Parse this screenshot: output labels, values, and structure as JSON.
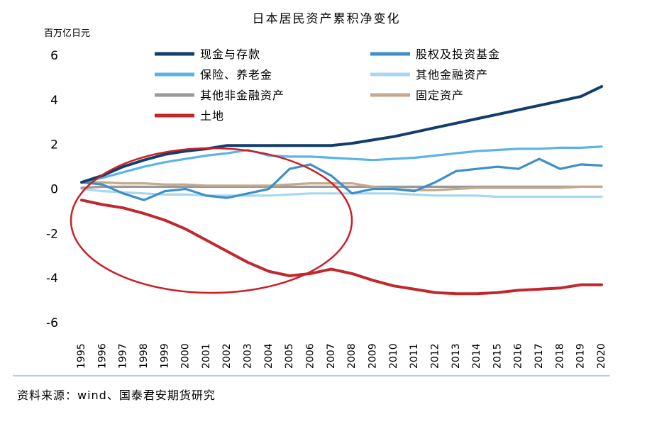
{
  "chart_data": {
    "type": "line",
    "title": "日本居民资产累积净变化",
    "unit_label": "百万亿日元",
    "source_note": "资料来源：wind、国泰君安期货研究",
    "ylim": [
      -6,
      6
    ],
    "yticks": [
      6,
      4,
      2,
      0,
      -2,
      -4,
      -6
    ],
    "x": [
      "1995",
      "1996",
      "1997",
      "1998",
      "1999",
      "2000",
      "2001",
      "2002",
      "2003",
      "2004",
      "2005",
      "2006",
      "2007",
      "2008",
      "2009",
      "2010",
      "2011",
      "2012",
      "2013",
      "2014",
      "2015",
      "2016",
      "2017",
      "2018",
      "2019",
      "2020"
    ],
    "grid": false,
    "legend_position": "top-left",
    "series": [
      {
        "name": "现金与存款",
        "color": "#123e6b",
        "values": [
          0.3,
          0.6,
          1.0,
          1.3,
          1.55,
          1.7,
          1.8,
          1.95,
          1.95,
          1.95,
          1.95,
          1.95,
          1.95,
          2.05,
          2.2,
          2.35,
          2.55,
          2.75,
          2.95,
          3.15,
          3.35,
          3.55,
          3.75,
          3.95,
          4.15,
          4.6
        ]
      },
      {
        "name": "股权及投资基金",
        "color": "#3c8fcb",
        "values": [
          0.3,
          0.2,
          -0.2,
          -0.5,
          -0.1,
          0.0,
          -0.3,
          -0.4,
          -0.2,
          0.0,
          0.9,
          1.1,
          0.6,
          -0.2,
          0.0,
          0.0,
          -0.1,
          0.3,
          0.8,
          0.9,
          1.0,
          0.9,
          1.35,
          0.9,
          1.1,
          1.05
        ]
      },
      {
        "name": "保险、养老金",
        "color": "#5ab4e5",
        "values": [
          0.3,
          0.5,
          0.75,
          1.0,
          1.2,
          1.35,
          1.5,
          1.6,
          1.75,
          1.5,
          1.45,
          1.45,
          1.4,
          1.35,
          1.3,
          1.35,
          1.4,
          1.5,
          1.6,
          1.7,
          1.75,
          1.8,
          1.8,
          1.85,
          1.85,
          1.9
        ]
      },
      {
        "name": "其他金融资产",
        "color": "#a9d7f0",
        "values": [
          0.0,
          -0.1,
          -0.15,
          -0.2,
          -0.25,
          -0.25,
          -0.3,
          -0.3,
          -0.3,
          -0.3,
          -0.25,
          -0.2,
          -0.2,
          -0.2,
          -0.2,
          -0.2,
          -0.25,
          -0.3,
          -0.3,
          -0.3,
          -0.35,
          -0.35,
          -0.35,
          -0.35,
          -0.35,
          -0.35
        ]
      },
      {
        "name": "其他非金融资产",
        "color": "#9a9a9a",
        "values": [
          0.05,
          0.1,
          0.1,
          0.1,
          0.1,
          0.1,
          0.1,
          0.1,
          0.1,
          0.1,
          0.1,
          0.1,
          0.1,
          0.1,
          0.1,
          0.1,
          0.1,
          0.1,
          0.1,
          0.1,
          0.1,
          0.1,
          0.1,
          0.1,
          0.1,
          0.1
        ]
      },
      {
        "name": "固定资产",
        "color": "#c4a98a",
        "values": [
          0.3,
          0.3,
          0.25,
          0.25,
          0.2,
          0.2,
          0.15,
          0.15,
          0.15,
          0.15,
          0.2,
          0.25,
          0.25,
          0.25,
          0.1,
          0.0,
          -0.05,
          -0.05,
          0.0,
          0.05,
          0.05,
          0.05,
          0.05,
          0.05,
          0.1,
          0.1
        ]
      },
      {
        "name": "土地",
        "color": "#c0282d",
        "values": [
          -0.5,
          -0.7,
          -0.85,
          -1.1,
          -1.4,
          -1.8,
          -2.3,
          -2.8,
          -3.3,
          -3.7,
          -3.9,
          -3.8,
          -3.6,
          -3.8,
          -4.1,
          -4.35,
          -4.5,
          -4.65,
          -4.7,
          -4.7,
          -4.65,
          -4.55,
          -4.5,
          -4.45,
          -4.3,
          -4.3
        ]
      }
    ]
  }
}
